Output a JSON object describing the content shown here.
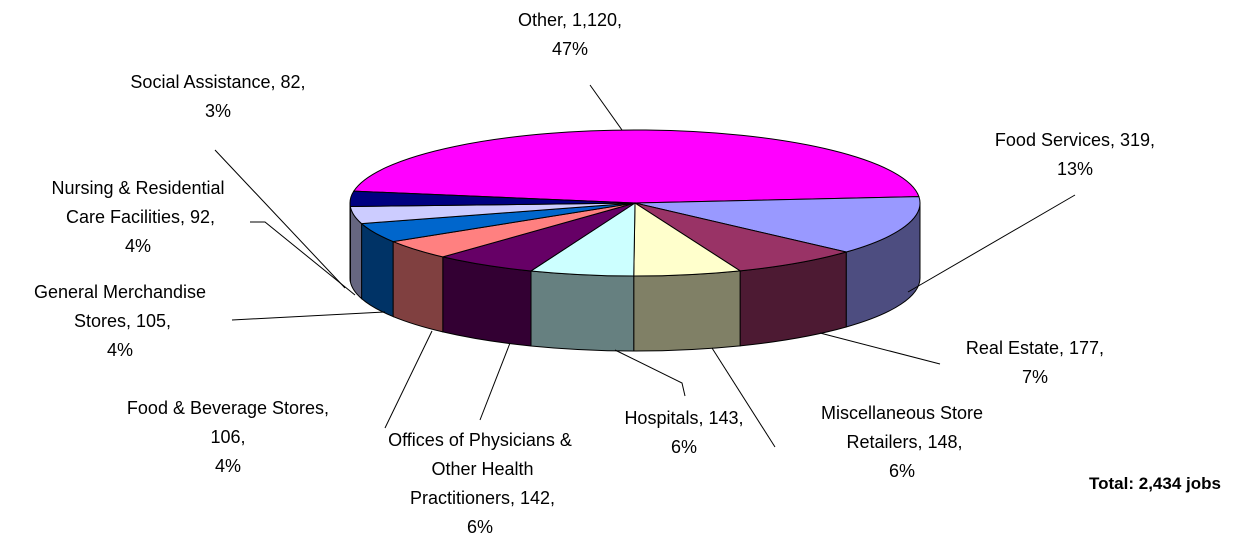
{
  "chart_data": {
    "type": "pie",
    "three_d": true,
    "categories": [
      "Other",
      "Food Services",
      "Real Estate",
      "Miscellaneous Store Retailers",
      "Hospitals",
      "Offices of Physicians & Other Health Practitioners",
      "Food & Beverage Stores",
      "General Merchandise Stores",
      "Nursing & Residential Care Facilities",
      "Social Assistance"
    ],
    "values": [
      1120,
      319,
      177,
      148,
      143,
      142,
      106,
      105,
      92,
      82
    ],
    "value_labels": [
      "1,120",
      "319",
      "177",
      "148",
      "143",
      "142",
      "106",
      "105",
      "92",
      "82"
    ],
    "percents": [
      47,
      13,
      7,
      6,
      6,
      6,
      4,
      4,
      4,
      3
    ],
    "percent_labels": [
      "47%",
      "13%",
      "7%",
      "6%",
      "6%",
      "6%",
      "4%",
      "4%",
      "4%",
      "3%"
    ],
    "colors": [
      "#ff00ff",
      "#9999ff",
      "#993366",
      "#ffffcc",
      "#ccffff",
      "#660066",
      "#ff8080",
      "#0066cc",
      "#ccccff",
      "#000080"
    ],
    "annotation": "Total: 2,434 jobs"
  }
}
